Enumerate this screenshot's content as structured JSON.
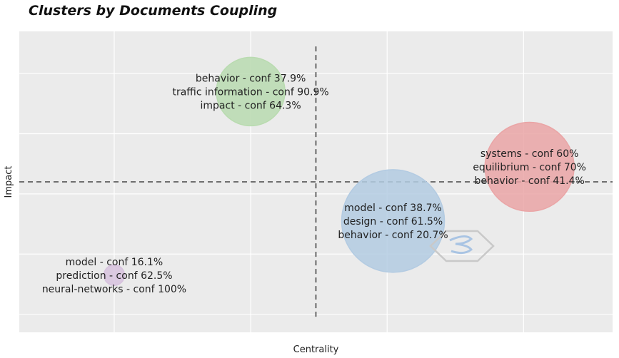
{
  "chart_data": {
    "type": "bubble",
    "title": "Clusters by Documents Coupling",
    "xlabel": "Centrality",
    "ylabel": "Impact",
    "xlim": [
      0,
      10
    ],
    "ylim": [
      0,
      10
    ],
    "grid": true,
    "reference_lines": {
      "x": 5.0,
      "y": 5.0
    },
    "clusters": [
      {
        "x": 3.9,
        "y": 8.0,
        "size": 1.0,
        "color": "#b9dbb0",
        "labels": [
          "behavior - conf 37.9%",
          "traffic information - conf 90.9%",
          "impact - conf 64.3%"
        ]
      },
      {
        "x": 8.6,
        "y": 5.5,
        "size": 1.3,
        "color": "#eaa5a6",
        "labels": [
          "systems - conf 60%",
          "equilibrium - conf 70%",
          "behavior - conf 41.4%"
        ]
      },
      {
        "x": 6.3,
        "y": 3.7,
        "size": 1.5,
        "color": "#b3cbe2",
        "labels": [
          "model - conf 38.7%",
          "design - conf 61.5%",
          "behavior - conf 20.7%"
        ]
      },
      {
        "x": 1.6,
        "y": 1.9,
        "size": 0.3,
        "color": "#d7c2de",
        "labels": [
          "model - conf 16.1%",
          "prediction - conf 62.5%",
          "neural-networks - conf 100%"
        ]
      }
    ]
  }
}
